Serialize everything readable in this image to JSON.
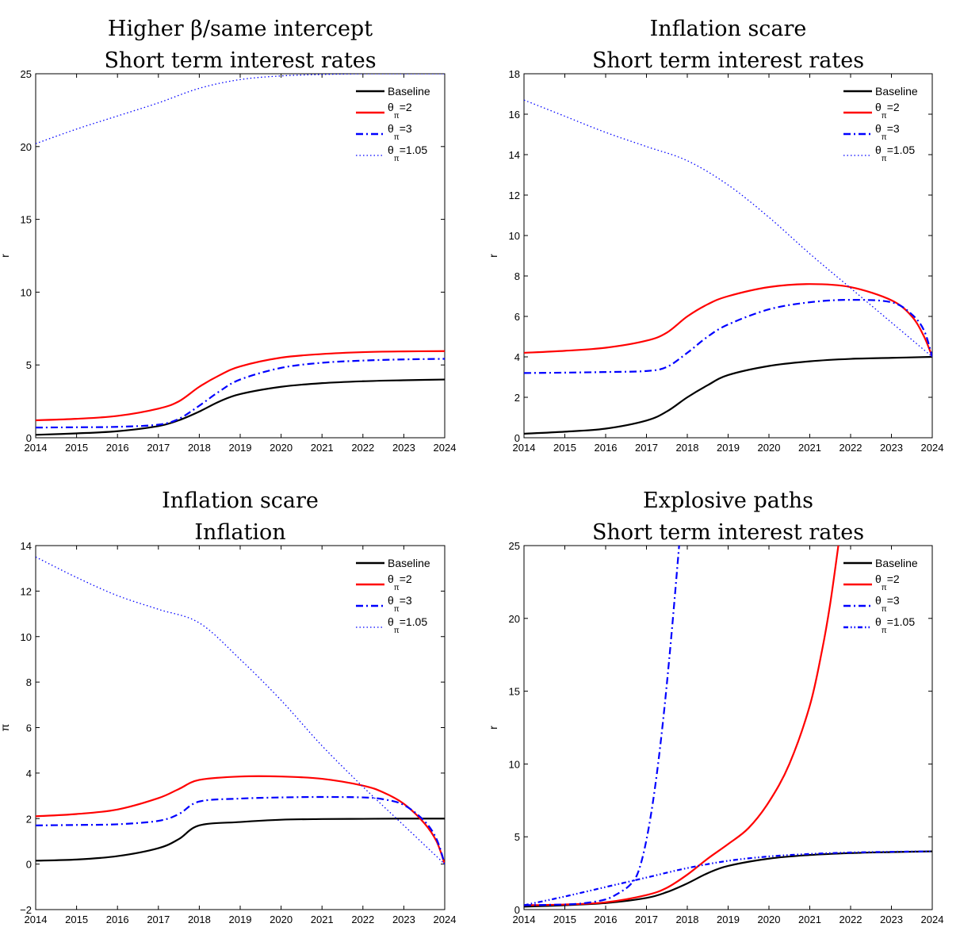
{
  "chart_data": [
    {
      "type": "line",
      "title": [
        "Higher β/same intercept",
        "Short term interest rates"
      ],
      "xlabel": "",
      "ylabel": "r",
      "xlim": [
        2014,
        2024
      ],
      "ylim": [
        0,
        25
      ],
      "xticks": [
        "2014",
        "2015",
        "2016",
        "2017",
        "2018",
        "2019",
        "2020",
        "2021",
        "2022",
        "2023",
        "2024"
      ],
      "yticks": [
        "0",
        "5",
        "10",
        "15",
        "20",
        "25"
      ],
      "legend_position": "top-right",
      "series": [
        {
          "name": "Baseline",
          "style": "solid",
          "color": "#000000",
          "x": [
            2014,
            2015,
            2016,
            2017,
            2017.5,
            2018,
            2018.5,
            2019,
            2020,
            2021,
            2022,
            2023,
            2024
          ],
          "y": [
            0.2,
            0.3,
            0.45,
            0.8,
            1.2,
            1.8,
            2.5,
            3.0,
            3.5,
            3.75,
            3.88,
            3.95,
            4.0
          ]
        },
        {
          "name": "θπ=2",
          "label_main": "θ",
          "label_sub": "π",
          "label_value": "=2",
          "style": "solid",
          "color": "#ff0000",
          "x": [
            2014,
            2015,
            2016,
            2017,
            2017.5,
            2018,
            2018.5,
            2019,
            2020,
            2021,
            2022,
            2023,
            2024
          ],
          "y": [
            1.2,
            1.3,
            1.5,
            2.0,
            2.5,
            3.5,
            4.3,
            4.9,
            5.5,
            5.75,
            5.88,
            5.93,
            5.95
          ]
        },
        {
          "name": "θπ=3",
          "label_main": "θ",
          "label_sub": "π",
          "label_value": "=3",
          "style": "dashdot",
          "color": "#0000ff",
          "x": [
            2014,
            2015,
            2016,
            2017,
            2017.5,
            2018,
            2018.5,
            2019,
            2020,
            2021,
            2022,
            2023,
            2024
          ],
          "y": [
            0.7,
            0.72,
            0.75,
            0.9,
            1.3,
            2.2,
            3.2,
            4.0,
            4.8,
            5.15,
            5.3,
            5.38,
            5.42
          ]
        },
        {
          "name": "θπ=1.05",
          "label_main": "θ",
          "label_sub": "π",
          "label_value": "=1.05",
          "style": "dotted",
          "color": "#0000ff",
          "x": [
            2014,
            2015,
            2016,
            2017,
            2018,
            2019,
            2020,
            2021,
            2022,
            2023,
            2024
          ],
          "y": [
            20.2,
            21.2,
            22.1,
            23.0,
            24.0,
            24.6,
            24.85,
            24.95,
            25.0,
            25.0,
            25.0
          ]
        }
      ]
    },
    {
      "type": "line",
      "title": [
        "Inflation scare",
        "Short term interest rates"
      ],
      "xlabel": "",
      "ylabel": "r",
      "xlim": [
        2014,
        2024
      ],
      "ylim": [
        0,
        18
      ],
      "xticks": [
        "2014",
        "2015",
        "2016",
        "2017",
        "2018",
        "2019",
        "2020",
        "2021",
        "2022",
        "2023",
        "2024"
      ],
      "yticks": [
        "0",
        "2",
        "4",
        "6",
        "8",
        "10",
        "12",
        "14",
        "16",
        "18"
      ],
      "legend_position": "top-right",
      "series": [
        {
          "name": "Baseline",
          "style": "solid",
          "color": "#000000",
          "x": [
            2014,
            2015,
            2016,
            2017,
            2017.5,
            2018,
            2018.5,
            2019,
            2020,
            2021,
            2022,
            2023,
            2024
          ],
          "y": [
            0.2,
            0.3,
            0.45,
            0.85,
            1.3,
            2.0,
            2.6,
            3.1,
            3.55,
            3.78,
            3.9,
            3.95,
            4.0
          ]
        },
        {
          "name": "θπ=2",
          "label_main": "θ",
          "label_sub": "π",
          "label_value": "=2",
          "style": "solid",
          "color": "#ff0000",
          "x": [
            2014,
            2015,
            2016,
            2017,
            2017.5,
            2018,
            2018.5,
            2019,
            2020,
            2021,
            2022,
            2023,
            2023.5,
            2023.8,
            2024
          ],
          "y": [
            4.2,
            4.3,
            4.45,
            4.8,
            5.2,
            6.0,
            6.6,
            7.0,
            7.45,
            7.6,
            7.45,
            6.8,
            6.0,
            5.0,
            4.0
          ]
        },
        {
          "name": "θπ=3",
          "label_main": "θ",
          "label_sub": "π",
          "label_value": "=3",
          "style": "dashdot",
          "color": "#0000ff",
          "x": [
            2014,
            2015,
            2016,
            2017,
            2017.5,
            2018,
            2018.5,
            2019,
            2020,
            2021,
            2022,
            2023,
            2023.5,
            2023.8,
            2024
          ],
          "y": [
            3.2,
            3.22,
            3.25,
            3.3,
            3.5,
            4.2,
            5.0,
            5.6,
            6.35,
            6.7,
            6.82,
            6.7,
            6.1,
            5.3,
            4.0
          ]
        },
        {
          "name": "θπ=1.05",
          "label_main": "θ",
          "label_sub": "π",
          "label_value": "=1.05",
          "style": "dotted",
          "color": "#0000ff",
          "x": [
            2014,
            2015,
            2016,
            2017,
            2018,
            2019,
            2020,
            2021,
            2022,
            2023,
            2024
          ],
          "y": [
            16.7,
            15.9,
            15.1,
            14.4,
            13.7,
            12.5,
            10.9,
            9.1,
            7.4,
            5.7,
            4.0
          ]
        }
      ]
    },
    {
      "type": "line",
      "title": [
        "Inflation scare",
        "Inflation"
      ],
      "xlabel": "",
      "ylabel": "π",
      "xlim": [
        2014,
        2024
      ],
      "ylim": [
        -2,
        14
      ],
      "xticks": [
        "2014",
        "2015",
        "2016",
        "2017",
        "2018",
        "2019",
        "2020",
        "2021",
        "2022",
        "2023",
        "2024"
      ],
      "yticks": [
        "−2",
        "0",
        "2",
        "4",
        "6",
        "8",
        "10",
        "12",
        "14"
      ],
      "legend_position": "top-right",
      "series": [
        {
          "name": "Baseline",
          "style": "solid",
          "color": "#000000",
          "x": [
            2014,
            2015,
            2016,
            2017,
            2017.5,
            2018,
            2019,
            2020,
            2021,
            2022,
            2023,
            2024
          ],
          "y": [
            0.15,
            0.2,
            0.35,
            0.7,
            1.1,
            1.7,
            1.85,
            1.95,
            1.98,
            1.99,
            2.0,
            2.0
          ]
        },
        {
          "name": "θπ=2",
          "label_main": "θ",
          "label_sub": "π",
          "label_value": "=2",
          "style": "solid",
          "color": "#ff0000",
          "x": [
            2014,
            2015,
            2016,
            2017,
            2017.5,
            2018,
            2019,
            2020,
            2021,
            2022,
            2022.5,
            2023,
            2023.5,
            2023.8,
            2024
          ],
          "y": [
            2.1,
            2.2,
            2.4,
            2.9,
            3.3,
            3.7,
            3.85,
            3.85,
            3.75,
            3.45,
            3.15,
            2.65,
            1.8,
            1.0,
            0.0
          ]
        },
        {
          "name": "θπ=3",
          "label_main": "θ",
          "label_sub": "π",
          "label_value": "=3",
          "style": "dashdot",
          "color": "#0000ff",
          "x": [
            2014,
            2015,
            2016,
            2017,
            2017.5,
            2018,
            2019,
            2020,
            2021,
            2022,
            2022.5,
            2023,
            2023.5,
            2023.8,
            2024
          ],
          "y": [
            1.7,
            1.72,
            1.75,
            1.9,
            2.2,
            2.75,
            2.88,
            2.93,
            2.95,
            2.93,
            2.85,
            2.6,
            1.9,
            1.1,
            0.0
          ]
        },
        {
          "name": "θπ=1.05",
          "label_main": "θ",
          "label_sub": "π",
          "label_value": "=1.05",
          "style": "dotted",
          "color": "#0000ff",
          "x": [
            2014,
            2015,
            2016,
            2017,
            2018,
            2019,
            2020,
            2021,
            2022,
            2023,
            2024
          ],
          "y": [
            13.5,
            12.6,
            11.8,
            11.2,
            10.6,
            9.0,
            7.2,
            5.2,
            3.4,
            1.7,
            0.0
          ]
        }
      ]
    },
    {
      "type": "line",
      "title": [
        "Explosive paths",
        "Short term interest rates"
      ],
      "xlabel": "",
      "ylabel": "r",
      "xlim": [
        2014,
        2024
      ],
      "ylim": [
        0,
        25
      ],
      "xticks": [
        "2014",
        "2015",
        "2016",
        "2017",
        "2018",
        "2019",
        "2020",
        "2021",
        "2022",
        "2023",
        "2024"
      ],
      "yticks": [
        "0",
        "5",
        "10",
        "15",
        "20",
        "25"
      ],
      "legend_position": "top-right",
      "series": [
        {
          "name": "Baseline",
          "style": "solid",
          "color": "#000000",
          "x": [
            2014,
            2015,
            2016,
            2017,
            2017.5,
            2018,
            2018.5,
            2019,
            2020,
            2021,
            2022,
            2023,
            2024
          ],
          "y": [
            0.2,
            0.3,
            0.45,
            0.8,
            1.2,
            1.8,
            2.5,
            3.0,
            3.5,
            3.75,
            3.88,
            3.95,
            4.0
          ]
        },
        {
          "name": "θπ=2",
          "label_main": "θ",
          "label_sub": "π",
          "label_value": "=2",
          "style": "solid",
          "color": "#ff0000",
          "x": [
            2014,
            2015,
            2016,
            2017,
            2017.5,
            2018,
            2018.5,
            2019,
            2019.5,
            2020,
            2020.5,
            2021,
            2021.3,
            2021.5,
            2021.7
          ],
          "y": [
            0.3,
            0.35,
            0.5,
            1.0,
            1.5,
            2.4,
            3.5,
            4.5,
            5.6,
            7.4,
            10.0,
            14.0,
            17.8,
            21.0,
            25.0
          ]
        },
        {
          "name": "θπ=3",
          "label_main": "θ",
          "label_sub": "π",
          "label_value": "=3",
          "style": "dashdot",
          "color": "#0000ff",
          "x": [
            2014,
            2015,
            2015.5,
            2016,
            2016.3,
            2016.6,
            2016.8,
            2017,
            2017.2,
            2017.4,
            2017.6,
            2017.8
          ],
          "y": [
            0.3,
            0.35,
            0.45,
            0.7,
            1.1,
            1.7,
            2.6,
            4.8,
            8.2,
            12.8,
            18.5,
            25.0
          ]
        },
        {
          "name": "θπ=1.05",
          "label_main": "θ",
          "label_sub": "π",
          "label_value": "=1.05",
          "style": "dashdot-dotted",
          "color": "#0000ff",
          "x": [
            2014,
            2015,
            2016,
            2017,
            2018,
            2019,
            2020,
            2021,
            2022,
            2023,
            2024
          ],
          "y": [
            0.3,
            0.9,
            1.55,
            2.2,
            2.85,
            3.35,
            3.65,
            3.82,
            3.92,
            3.97,
            4.0
          ]
        }
      ]
    }
  ]
}
